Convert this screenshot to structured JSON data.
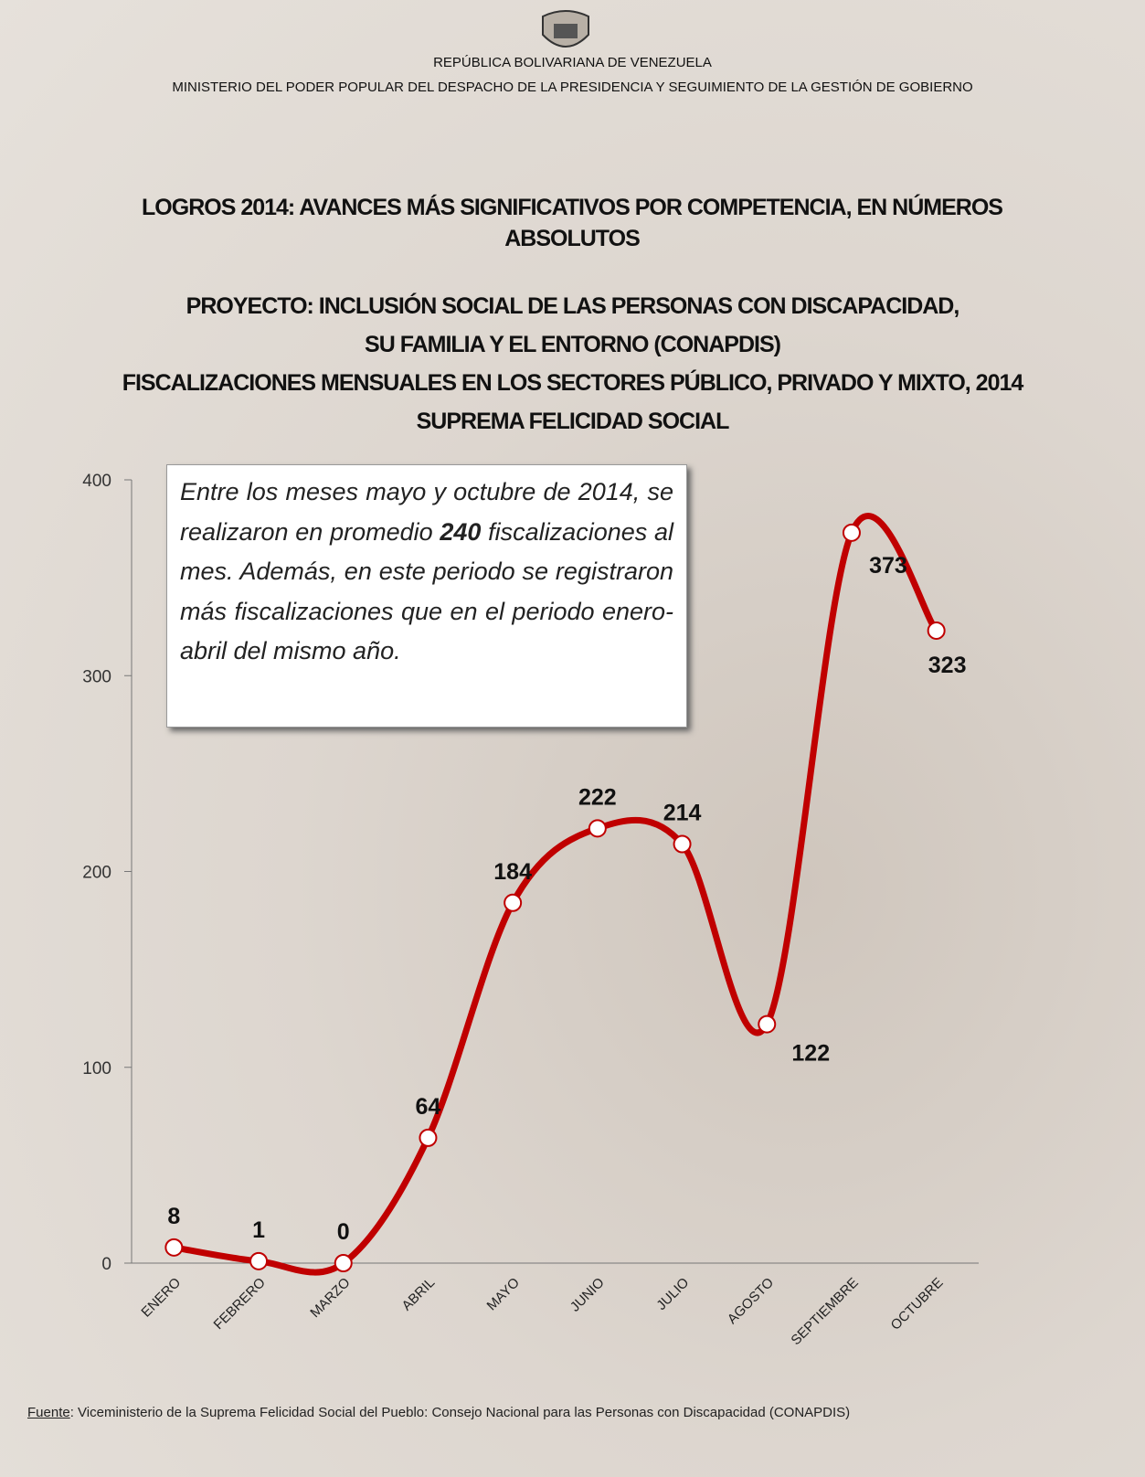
{
  "header": {
    "country": "REPÚBLICA BOLIVARIANA DE VENEZUELA",
    "ministry": "MINISTERIO DEL PODER POPULAR DEL DESPACHO DE LA PRESIDENCIA Y SEGUIMIENTO DE LA GESTIÓN DE GOBIERNO"
  },
  "chart_data": {
    "type": "line",
    "title": "LOGROS 2014: AVANCES MÁS SIGNIFICATIVOS POR COMPETENCIA, EN NÚMEROS ABSOLUTOS",
    "subtitle": [
      "PROYECTO: INCLUSIÓN SOCIAL DE LAS PERSONAS CON DISCAPACIDAD,",
      "SU FAMILIA Y EL ENTORNO (CONAPDIS)",
      "FISCALIZACIONES MENSUALES EN LOS SECTORES PÚBLICO, PRIVADO Y MIXTO, 2014",
      "SUPREMA FELICIDAD SOCIAL"
    ],
    "annotation": [
      "Entre los meses mayo y octubre de 2014, se realizaron en promedio ",
      "240",
      " fiscalizaciones al mes. Además, en este periodo se registraron más fiscalizaciones que en el periodo enero-abril del mismo año."
    ],
    "categories": [
      "ENERO",
      "FEBRERO",
      "MARZO",
      "ABRIL",
      "MAYO",
      "JUNIO",
      "JULIO",
      "AGOSTO",
      "SEPTIEMBRE",
      "OCTUBRE"
    ],
    "values": [
      8,
      1,
      0,
      64,
      184,
      222,
      214,
      122,
      373,
      323
    ],
    "color": "#c00000",
    "ylim": [
      0,
      400
    ],
    "yticks": [
      0,
      100,
      200,
      300,
      400
    ],
    "grid": false,
    "source": {
      "label": "Fuente",
      "text": ": Viceministerio de la Suprema Felicidad Social del Pueblo: Consejo Nacional para las Personas con Discapacidad (CONAPDIS)"
    }
  }
}
